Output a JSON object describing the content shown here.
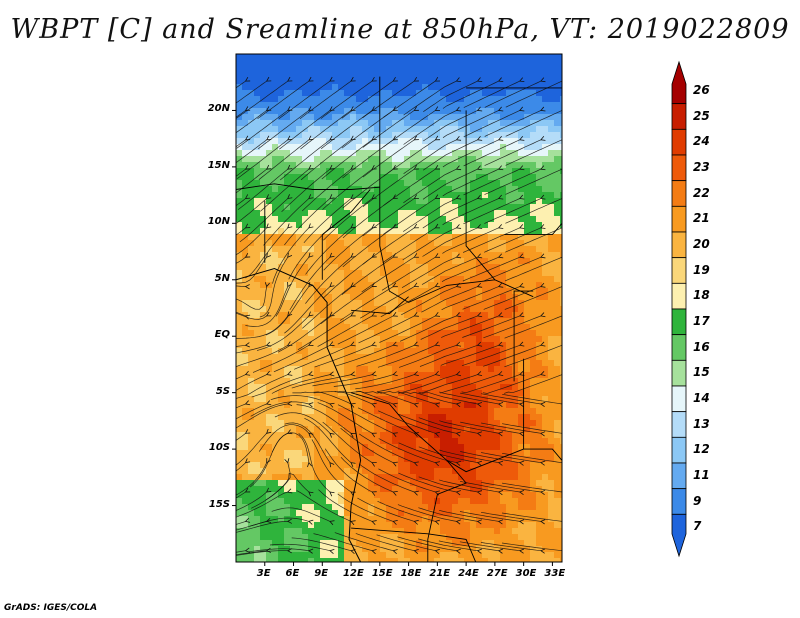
{
  "title": "WBPT [C] and Sreamline at 850hPa, VT: 2019022809",
  "map": {
    "lat_labels": [
      "20N",
      "15N",
      "10N",
      "5N",
      "EQ",
      "5S",
      "10S",
      "15S"
    ],
    "lon_labels": [
      "3E",
      "6E",
      "9E",
      "12E",
      "15E",
      "18E",
      "21E",
      "24E",
      "27E",
      "30E",
      "33E"
    ],
    "lat_range": [
      -20,
      25
    ],
    "lon_range": [
      0,
      34
    ]
  },
  "colorbar": {
    "labels": [
      "26",
      "25",
      "24",
      "23",
      "22",
      "21",
      "20",
      "19",
      "18",
      "17",
      "16",
      "15",
      "14",
      "13",
      "12",
      "11",
      "9",
      "7"
    ],
    "colors": [
      "#a50000",
      "#c81e00",
      "#e03c00",
      "#ee5a0a",
      "#f47c14",
      "#f89a20",
      "#fab440",
      "#fad77a",
      "#fdf0b0",
      "#2fb43c",
      "#64c864",
      "#a6e19c",
      "#e6f6fa",
      "#b4dcf8",
      "#8cc8f5",
      "#64aaf0",
      "#3c8ae8",
      "#1e64dc"
    ]
  },
  "credit": "GrADS: IGES/COLA"
}
